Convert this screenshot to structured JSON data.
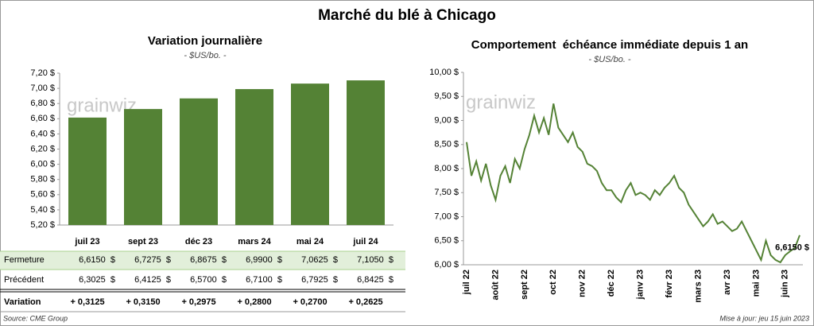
{
  "header": {
    "title": "Marché du blé à Chicago"
  },
  "chart_data": [
    {
      "type": "bar",
      "title": "Variation journalière",
      "subtitle": "- $US/bo. -",
      "watermark": "grainwiz",
      "categories": [
        "juil 23",
        "sept 23",
        "déc 23",
        "mars 24",
        "mai 24",
        "juil 24"
      ],
      "values": [
        6.615,
        6.7275,
        6.8675,
        6.99,
        7.0625,
        7.105
      ],
      "value_labels": [
        "6,6150  $",
        "6,7275  $",
        "6,8675  $",
        "6,9900  $",
        "7,0625  $",
        "7,1050  $"
      ],
      "color": "#548235",
      "ylim": [
        5.2,
        7.2
      ],
      "yticks": [
        {
          "value": 5.2,
          "label": "5,20 $"
        },
        {
          "value": 5.4,
          "label": "5,40 $"
        },
        {
          "value": 5.6,
          "label": "5,60 $"
        },
        {
          "value": 5.8,
          "label": "5,80 $"
        },
        {
          "value": 6.0,
          "label": "6,00 $"
        },
        {
          "value": 6.2,
          "label": "6,20 $"
        },
        {
          "value": 6.4,
          "label": "6,40 $"
        },
        {
          "value": 6.6,
          "label": "6,60 $"
        },
        {
          "value": 6.8,
          "label": "6,80 $"
        },
        {
          "value": 7.0,
          "label": "7,00 $"
        },
        {
          "value": 7.2,
          "label": "7,20 $"
        }
      ]
    },
    {
      "type": "line",
      "title": "Comportement  échéance immédiate depuis 1 an",
      "subtitle": "- $US/bo. -",
      "watermark": "grainwiz",
      "categories": [
        "juil 22",
        null,
        null,
        null,
        null,
        null,
        "août 22",
        null,
        null,
        null,
        null,
        null,
        "sept 22",
        null,
        null,
        null,
        null,
        null,
        "oct 22",
        null,
        null,
        null,
        null,
        null,
        "nov 22",
        null,
        null,
        null,
        null,
        null,
        "déc 22",
        null,
        null,
        null,
        null,
        null,
        "janv 23",
        null,
        null,
        null,
        null,
        null,
        "févr 23",
        null,
        null,
        null,
        null,
        null,
        "mars 23",
        null,
        null,
        null,
        null,
        null,
        "avr 23",
        null,
        null,
        null,
        null,
        null,
        "mai 23",
        null,
        null,
        null,
        null,
        null,
        "juin 23",
        null,
        null,
        null
      ],
      "values": [
        8.55,
        7.85,
        8.15,
        7.75,
        8.1,
        7.65,
        7.35,
        7.85,
        8.05,
        7.7,
        8.2,
        8.0,
        8.4,
        8.7,
        9.1,
        8.75,
        9.05,
        8.7,
        9.35,
        8.85,
        8.7,
        8.55,
        8.75,
        8.45,
        8.35,
        8.1,
        8.05,
        7.95,
        7.7,
        7.55,
        7.55,
        7.4,
        7.3,
        7.55,
        7.7,
        7.45,
        7.5,
        7.45,
        7.35,
        7.55,
        7.45,
        7.6,
        7.7,
        7.85,
        7.6,
        7.5,
        7.25,
        7.1,
        6.95,
        6.8,
        6.9,
        7.05,
        6.85,
        6.9,
        6.8,
        6.7,
        6.75,
        6.9,
        6.7,
        6.5,
        6.3,
        6.1,
        6.5,
        6.2,
        6.1,
        6.05,
        6.2,
        6.28,
        6.35,
        6.615
      ],
      "annotation": "6,6150 $",
      "color": "#548235",
      "ylim": [
        6.0,
        10.0
      ],
      "yticks": [
        {
          "value": 6.0,
          "label": "6,00 $"
        },
        {
          "value": 6.5,
          "label": "6,50 $"
        },
        {
          "value": 7.0,
          "label": "7,00 $"
        },
        {
          "value": 7.5,
          "label": "7,50 $"
        },
        {
          "value": 8.0,
          "label": "8,00 $"
        },
        {
          "value": 8.5,
          "label": "8,50 $"
        },
        {
          "value": 9.0,
          "label": "9,00 $"
        },
        {
          "value": 9.5,
          "label": "9,50 $"
        },
        {
          "value": 10.0,
          "label": "10,00 $"
        }
      ]
    }
  ],
  "table": {
    "closing_label": "Fermeture",
    "rows": [
      {
        "label": "Précédent",
        "cells": [
          "6,3025  $",
          "6,4125  $",
          "6,5700  $",
          "6,7100  $",
          "6,7925  $",
          "6,8425  $"
        ]
      },
      {
        "label": "Variation",
        "cells": [
          "+ 0,3125",
          "+ 0,3150",
          "+ 0,2975",
          "+ 0,2800",
          "+ 0,2700",
          "+ 0,2625"
        ]
      }
    ]
  },
  "footer": {
    "source": "Source: CME Group",
    "updated": "Mise à jour: jeu 15 juin 2023"
  }
}
